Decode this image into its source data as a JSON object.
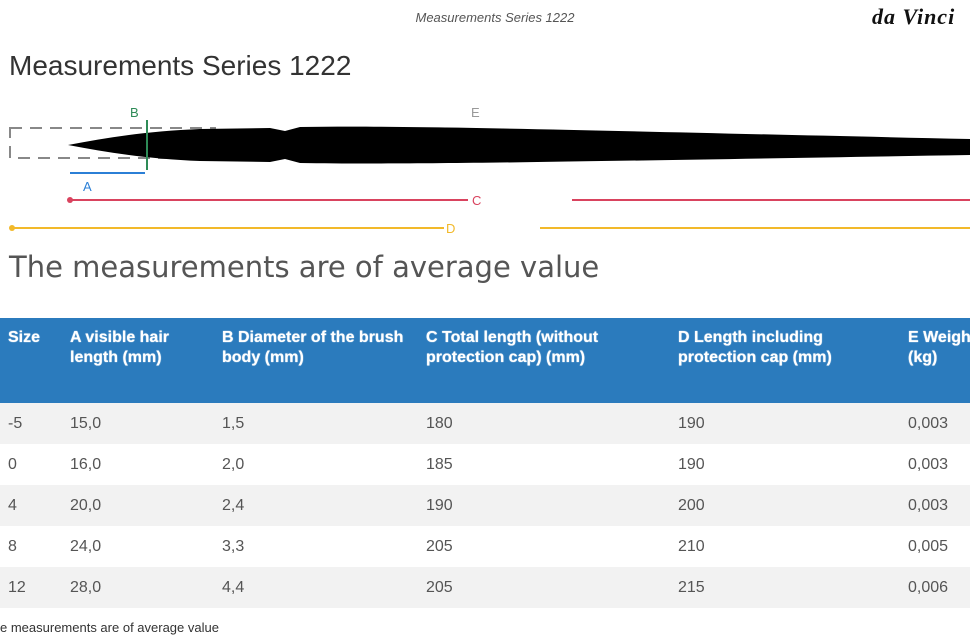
{
  "header": {
    "caption": "Measurements Series 1222",
    "logo": "da Vinci"
  },
  "title": "Measurements Series 1222",
  "diagram": {
    "labels": {
      "a": "A",
      "b": "B",
      "c": "C",
      "d": "D",
      "e": "E"
    }
  },
  "subtitle": "The measurements are of average value",
  "table": {
    "columns": [
      "Size",
      "A visible hair length (mm)",
      "B Diameter of the brush body (mm)",
      "C Total length (without protection cap) (mm)",
      "D Length including protection cap (mm)",
      "E Weight (kg)"
    ],
    "rows": [
      [
        "-5",
        "15,0",
        "1,5",
        "180",
        "190",
        "0,003"
      ],
      [
        "0",
        "16,0",
        "2,0",
        "185",
        "190",
        "0,003"
      ],
      [
        "4",
        "20,0",
        "2,4",
        "190",
        "200",
        "0,003"
      ],
      [
        "8",
        "24,0",
        "3,3",
        "205",
        "210",
        "0,005"
      ],
      [
        "12",
        "28,0",
        "4,4",
        "205",
        "215",
        "0,006"
      ]
    ]
  },
  "footer": "e measurements are of average value"
}
